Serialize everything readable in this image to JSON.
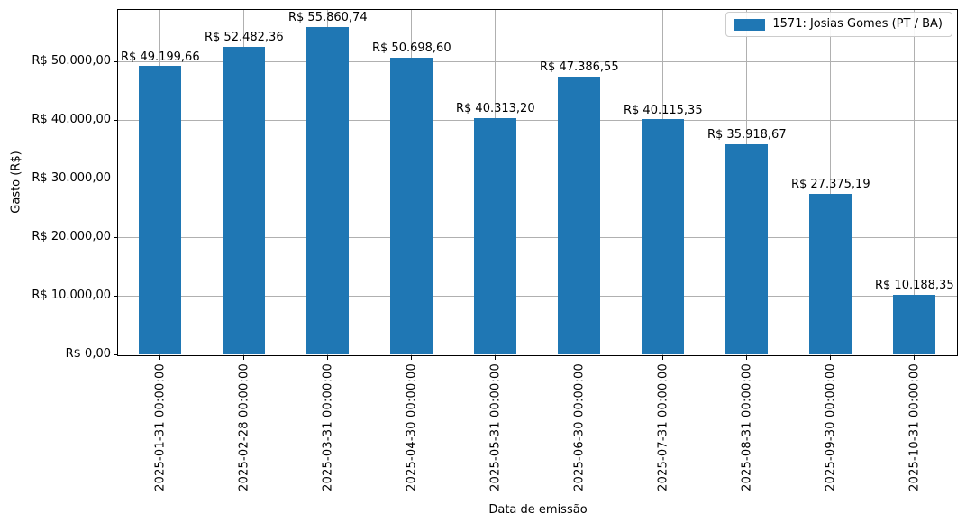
{
  "chart_data": {
    "type": "bar",
    "title": "",
    "xlabel": "Data de emissão",
    "ylabel": "Gasto (R$)",
    "categories": [
      "2025-01-31 00:00:00",
      "2025-02-28 00:00:00",
      "2025-03-31 00:00:00",
      "2025-04-30 00:00:00",
      "2025-05-31 00:00:00",
      "2025-06-30 00:00:00",
      "2025-07-31 00:00:00",
      "2025-08-31 00:00:00",
      "2025-09-30 00:00:00",
      "2025-10-31 00:00:00"
    ],
    "series": [
      {
        "name": "1571: Josias Gomes (PT / BA)",
        "values": [
          49199.66,
          52482.36,
          55860.74,
          50698.6,
          40313.2,
          47386.55,
          40115.35,
          35918.67,
          27375.19,
          10188.35
        ],
        "value_labels": [
          "R$ 49.199,66",
          "R$ 52.482,36",
          "R$ 55.860,74",
          "R$ 50.698,60",
          "R$ 40.313,20",
          "R$ 47.386,55",
          "R$ 40.115,35",
          "R$ 35.918,67",
          "R$ 27.375,19",
          "R$ 10.188,35"
        ],
        "color": "#1f77b4"
      }
    ],
    "yticks": [
      {
        "value": 0,
        "label": "R$ 0,00"
      },
      {
        "value": 10000,
        "label": "R$ 10.000,00"
      },
      {
        "value": 20000,
        "label": "R$ 20.000,00"
      },
      {
        "value": 30000,
        "label": "R$ 30.000,00"
      },
      {
        "value": 40000,
        "label": "R$ 40.000,00"
      },
      {
        "value": 50000,
        "label": "R$ 50.000,00"
      }
    ],
    "ylim": [
      0,
      58800
    ],
    "grid": true,
    "legend_position": "upper right"
  },
  "legend": {
    "label": "1571: Josias Gomes (PT / BA)",
    "swatch_color": "#1f77b4"
  },
  "colors": {
    "bar": "#1f77b4",
    "grid": "#b0b0b0",
    "spine": "#000000",
    "legend_border": "#cccccc",
    "background": "#ffffff",
    "text": "#000000"
  }
}
